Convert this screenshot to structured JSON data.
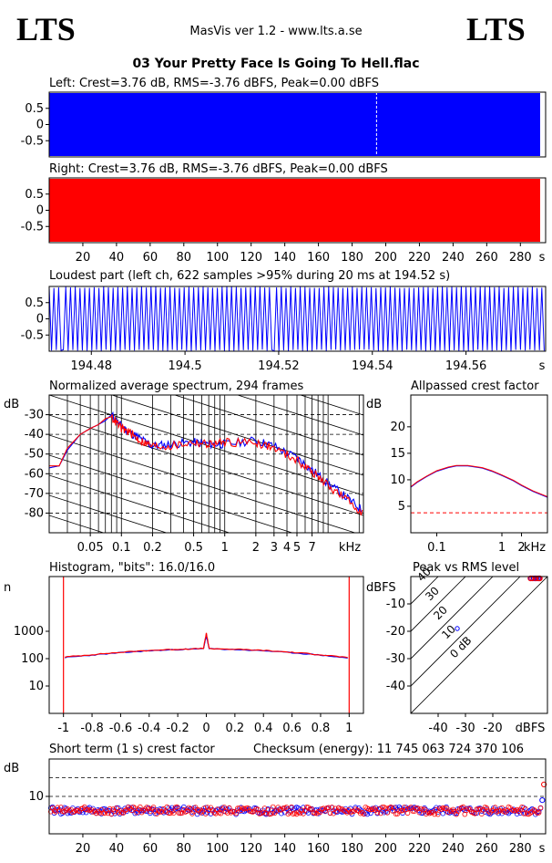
{
  "header": {
    "logo_left": "LTS",
    "logo_right": "LTS",
    "app_title": "MasVis ver 1.2 - www.lts.a.se",
    "track_title": "03 Your Pretty Face Is Going To Hell.flac"
  },
  "chart_data": [
    {
      "id": "left-waveform",
      "type": "area",
      "title": "Left: Crest=3.76 dB, RMS=-3.76 dBFS, Peak=0.00 dBFS",
      "color": "#0000ff",
      "ylim": [
        -1,
        1
      ],
      "y_ticks": [
        "0.5",
        "0",
        "-0.5"
      ],
      "marker_time_s": 194.52,
      "xlim": [
        0,
        295
      ]
    },
    {
      "id": "right-waveform",
      "type": "area",
      "title": "Right: Crest=3.76 dB, RMS=-3.76 dBFS, Peak=0.00 dBFS",
      "color": "#ff0000",
      "ylim": [
        -1,
        1
      ],
      "y_ticks": [
        "0.5",
        "0",
        "-0.5"
      ],
      "xlim": [
        0,
        295
      ],
      "x_ticks": [
        "20",
        "40",
        "60",
        "80",
        "100",
        "120",
        "140",
        "160",
        "180",
        "200",
        "220",
        "240",
        "260",
        "280"
      ],
      "x_unit": "s"
    },
    {
      "id": "loudest-part",
      "type": "line",
      "title": "Loudest part (left  ch, 622 samples >95% during 20 ms at 194.52 s)",
      "color": "#0000ff",
      "xlim": [
        194.471,
        194.577
      ],
      "ylim": [
        -1,
        1
      ],
      "y_ticks": [
        "0.5",
        "0",
        "-0.5"
      ],
      "x_ticks": [
        "194.48",
        "194.5",
        "194.52",
        "194.54",
        "194.56"
      ],
      "x_unit": "s"
    },
    {
      "id": "avg-spectrum",
      "type": "line",
      "title": "Normalized average spectrum, 294 frames",
      "ylabel": "dB",
      "xlabel": "kHz",
      "x_scale": "log",
      "xlim": [
        0.02,
        22
      ],
      "ylim": [
        -90,
        -20
      ],
      "y_ticks": [
        "-30",
        "-40",
        "-50",
        "-60",
        "-70",
        "-80"
      ],
      "x_ticks": [
        "0.05",
        "0.1",
        "0.2",
        "0.5",
        "1",
        "2",
        "3",
        "4",
        "5",
        "7"
      ],
      "series": [
        {
          "color": "#0000ff",
          "x": [
            0.02,
            0.025,
            0.03,
            0.04,
            0.05,
            0.06,
            0.07,
            0.08,
            0.1,
            0.12,
            0.15,
            0.2,
            0.3,
            0.5,
            0.7,
            1,
            2,
            3,
            5,
            7,
            10,
            15,
            22
          ],
          "y": [
            -57,
            -56,
            -48,
            -40,
            -37,
            -35,
            -33,
            -30,
            -36,
            -39,
            -42,
            -46,
            -45,
            -44,
            -45,
            -45,
            -43,
            -46,
            -52,
            -58,
            -65,
            -72,
            -79
          ]
        },
        {
          "color": "#ff0000",
          "x": [
            0.02,
            0.025,
            0.03,
            0.04,
            0.05,
            0.06,
            0.07,
            0.08,
            0.1,
            0.12,
            0.15,
            0.2,
            0.3,
            0.5,
            0.7,
            1,
            2,
            3,
            5,
            7,
            10,
            15,
            22
          ],
          "y": [
            -56,
            -56,
            -47,
            -40,
            -37,
            -35,
            -32,
            -31,
            -37,
            -39,
            -43,
            -46,
            -46,
            -44,
            -45,
            -44,
            -44,
            -47,
            -53,
            -59,
            -66,
            -73,
            -80
          ]
        }
      ]
    },
    {
      "id": "allpassed-crest",
      "type": "line",
      "title": "Allpassed crest factor",
      "ylabel": "dB",
      "xlabel": "kHz",
      "x_scale": "log",
      "xlim": [
        0.04,
        5
      ],
      "ylim": [
        0,
        26
      ],
      "y_ticks": [
        "20",
        "15",
        "10",
        "5"
      ],
      "x_ticks": [
        "0.1",
        "1",
        "2"
      ],
      "reference_db": 3.76,
      "series": [
        {
          "color": "#0000ff",
          "x": [
            0.04,
            0.05,
            0.07,
            0.1,
            0.15,
            0.2,
            0.3,
            0.5,
            0.7,
            1,
            1.5,
            2,
            3,
            5
          ],
          "y": [
            8.6,
            9.5,
            10.6,
            11.6,
            12.3,
            12.6,
            12.6,
            12.2,
            11.6,
            10.8,
            9.8,
            8.9,
            7.8,
            6.7
          ]
        },
        {
          "color": "#ff0000",
          "x": [
            0.04,
            0.05,
            0.07,
            0.1,
            0.15,
            0.2,
            0.3,
            0.5,
            0.7,
            1,
            1.5,
            2,
            3,
            5
          ],
          "y": [
            8.7,
            9.6,
            10.7,
            11.7,
            12.4,
            12.7,
            12.7,
            12.3,
            11.7,
            10.9,
            9.9,
            9.0,
            7.9,
            6.8
          ]
        }
      ]
    },
    {
      "id": "histogram",
      "type": "line",
      "title": "Histogram, \"bits\": 16.0/16.0",
      "ylabel": "n",
      "y_scale": "log",
      "xlim": [
        -1.1,
        1.1
      ],
      "ylim": [
        1,
        100000
      ],
      "y_ticks": [
        "1000",
        "100",
        "10"
      ],
      "x_ticks": [
        "-1",
        "-0.8",
        "-0.6",
        "-0.4",
        "-0.2",
        "0",
        "0.2",
        "0.4",
        "0.6",
        "0.8",
        "1"
      ],
      "series": [
        {
          "color": "#0000ff",
          "x": [
            -0.99,
            -0.8,
            -0.6,
            -0.4,
            -0.2,
            -0.02,
            0,
            0.02,
            0.2,
            0.4,
            0.6,
            0.8,
            0.99
          ],
          "y": [
            110,
            135,
            165,
            195,
            215,
            230,
            700,
            230,
            215,
            195,
            165,
            135,
            105
          ]
        },
        {
          "color": "#ff0000",
          "x": [
            -0.99,
            -0.8,
            -0.6,
            -0.4,
            -0.2,
            -0.02,
            0,
            0.02,
            0.2,
            0.4,
            0.6,
            0.8,
            0.99
          ],
          "y": [
            115,
            140,
            170,
            200,
            220,
            235,
            850,
            235,
            220,
            200,
            170,
            140,
            110
          ]
        }
      ]
    },
    {
      "id": "peak-vs-rms",
      "type": "scatter",
      "title": "Peak vs RMS level",
      "ylabel": "dBFS",
      "xlabel": "dBFS",
      "xlim": [
        -50,
        0
      ],
      "ylim": [
        -50,
        0
      ],
      "x_ticks": [
        "-40",
        "-30",
        "-20"
      ],
      "y_ticks": [
        "-10",
        "-20",
        "-30",
        "-40"
      ],
      "diagonal_labels": [
        "40",
        "30",
        "20",
        "10",
        "0 dB"
      ],
      "series": [
        {
          "color": "#0000ff",
          "x": [
            -6,
            -5,
            -4,
            -3,
            -4.5,
            -3.5
          ],
          "y": [
            0,
            0,
            0,
            0,
            0,
            0
          ]
        },
        {
          "color": "#ff0000",
          "x": [
            -5.5,
            -4.2,
            -3.2,
            -2.8,
            -6.2
          ],
          "y": [
            0,
            0,
            0,
            0,
            0
          ]
        }
      ]
    },
    {
      "id": "short-term-crest",
      "type": "scatter",
      "title": "Short term (1 s) crest factor",
      "checksum": "Checksum (energy):  11 745 063 724 370 106",
      "ylabel": "dB",
      "xlim": [
        0,
        295
      ],
      "ylim": [
        0,
        20
      ],
      "y_ticks": [
        "10"
      ],
      "x_ticks": [
        "20",
        "40",
        "60",
        "80",
        "100",
        "120",
        "140",
        "160",
        "180",
        "200",
        "220",
        "240",
        "260",
        "280"
      ],
      "x_unit": "s",
      "reference_lines_db": [
        10,
        15
      ]
    }
  ]
}
